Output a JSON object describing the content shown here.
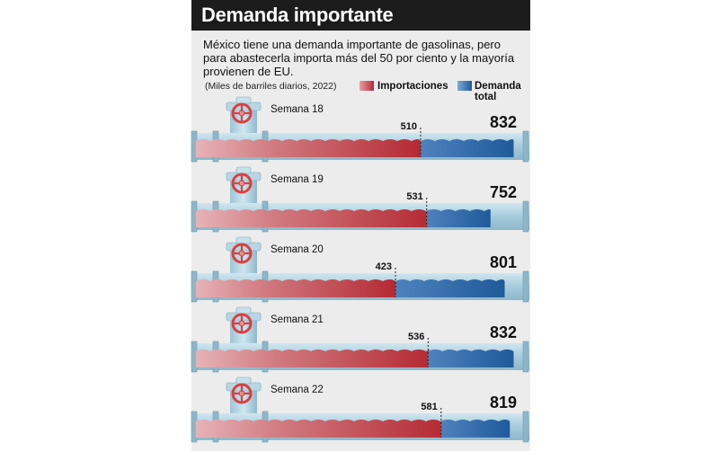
{
  "header": {
    "title": "Demanda importante",
    "subtitle": "México tiene una demanda importante de gasolinas, pero para abastecerla importa más del 50 por ciento y la mayoría provienen de EU.",
    "units": "(Miles de barriles diarios, 2022)"
  },
  "legend": {
    "imports_label": "Importaciones",
    "demand_label": "Demanda total"
  },
  "colors": {
    "imports": "#b52a33",
    "demand": "#1f5a9a",
    "pipe": "#a9cfe0",
    "valve": "#d8413f"
  },
  "chart_data": {
    "type": "bar",
    "categories": [
      "Semana 18",
      "Semana 19",
      "Semana 20",
      "Semana 21",
      "Semana 22"
    ],
    "series": [
      {
        "name": "Importaciones",
        "values": [
          510,
          531,
          423,
          536,
          581
        ]
      },
      {
        "name": "Demanda total",
        "values": [
          832,
          752,
          801,
          832,
          819
        ]
      }
    ],
    "title": "Demanda importante",
    "xlabel": "",
    "ylabel": "",
    "units": "Miles de barriles diarios, 2022",
    "xlim": [
      0,
      890
    ],
    "legend": "top-right"
  }
}
